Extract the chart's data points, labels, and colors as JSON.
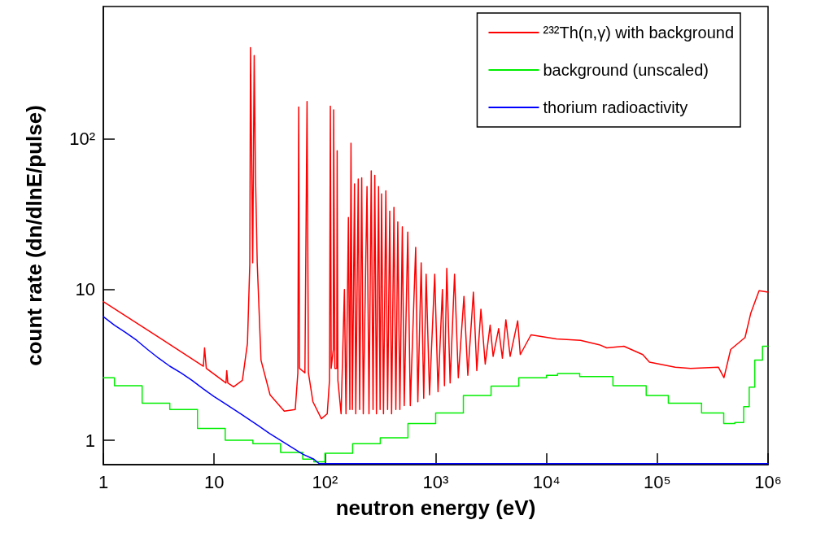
{
  "chart_data": {
    "type": "line",
    "xlabel": "neutron energy (eV)",
    "ylabel": "count rate (dn/dlnE/pulse)",
    "log": "xy",
    "xlim": [
      1,
      1000000
    ],
    "ylim": [
      0.69,
      750
    ],
    "xticks": [
      1,
      10,
      {
        "value": 100,
        "label": "10²"
      },
      {
        "value": 1000,
        "label": "10³"
      },
      {
        "value": 10000,
        "label": "10⁴"
      },
      {
        "value": 100000,
        "label": "10⁵"
      },
      {
        "value": 1000000,
        "label": "10⁶"
      }
    ],
    "yticks": [
      1,
      10,
      {
        "value": 100,
        "label": "10²"
      }
    ],
    "grid": false,
    "legend": "top right",
    "marker": "none",
    "line_style": "solid",
    "series": [
      {
        "name": "²³²Th(n,γ) with background",
        "color": "#ff0000",
        "type": "line",
        "x": [
          1,
          3.2,
          8,
          8.2,
          8.5,
          12.8,
          13,
          13.3,
          15,
          18,
          20,
          21,
          21.3,
          22.3,
          23,
          23.6,
          24.5,
          26.5,
          32,
          43,
          54,
          57,
          58,
          59,
          66,
          69,
          71,
          78,
          93,
          105,
          110,
          112,
          114,
          119,
          120,
          123,
          128,
          129,
          131,
          140,
          150,
          155,
          163,
          168,
          172,
          177,
          185,
          190,
          200,
          206,
          215,
          222,
          240,
          250,
          262,
          272,
          282,
          292,
          305,
          315,
          325,
          338,
          355,
          368,
          385,
          400,
          420,
          437,
          455,
          475,
          500,
          520,
          560,
          590,
          660,
          690,
          740,
          780,
          820,
          880,
          980,
          1050,
          1150,
          1200,
          1260,
          1350,
          1480,
          1600,
          1800,
          1950,
          2190,
          2350,
          2560,
          2800,
          3100,
          3300,
          3700,
          4000,
          4300,
          4700,
          5500,
          5800,
          7250,
          12300,
          20300,
          30000,
          35000,
          50000,
          74000,
          85000,
          145000,
          200000,
          357000,
          400000,
          460000,
          620000,
          700000,
          830000,
          1000000
        ],
        "values": [
          8.3,
          4.8,
          3.1,
          4.1,
          3.0,
          2.4,
          2.9,
          2.4,
          2.26,
          2.5,
          4.4,
          14.8,
          400,
          15,
          355,
          60,
          15,
          3.4,
          2.0,
          1.56,
          1.6,
          2.8,
          162,
          3.0,
          2.8,
          176,
          2.8,
          1.8,
          1.39,
          1.5,
          2.5,
          164,
          3,
          4,
          155,
          3,
          3,
          83,
          2.5,
          1.5,
          10,
          1.5,
          30,
          1.6,
          93,
          1.6,
          50,
          1.5,
          54,
          1.6,
          55,
          1.5,
          48,
          1.5,
          61,
          1.6,
          57,
          1.5,
          48,
          1.6,
          43,
          1.5,
          45,
          1.6,
          33,
          1.5,
          35,
          1.6,
          28,
          1.6,
          26,
          1.7,
          24,
          1.7,
          19,
          1.8,
          15,
          1.9,
          12.6,
          2.0,
          12.6,
          2.1,
          10,
          2.3,
          13.8,
          2.4,
          12.6,
          2.6,
          9,
          2.7,
          9.6,
          2.9,
          7.4,
          3.2,
          5.8,
          3.6,
          5.5,
          3.5,
          6.3,
          3.6,
          6.2,
          3.7,
          5.0,
          4.7,
          4.6,
          4.3,
          4.1,
          4.2,
          3.7,
          3.3,
          3.05,
          3.0,
          3.05,
          2.6,
          4.0,
          4.8,
          7.0,
          9.8,
          9.6
        ]
      },
      {
        "name": "background (unscaled)",
        "color": "#00ee00",
        "type": "step",
        "x": [
          1,
          1.26,
          2.24,
          3.98,
          7.08,
          12.6,
          22.4,
          39.8,
          63.1,
          79.4,
          100,
          178,
          316,
          562,
          1000,
          1778,
          3162,
          5623,
          10000,
          12589,
          19953,
          39811,
          79433,
          125893,
          251189,
          398107,
          501187,
          602560,
          676083,
          758578,
          891251,
          1000000
        ],
        "values": [
          2.6,
          2.3,
          1.76,
          1.6,
          1.2,
          1.0,
          0.95,
          0.83,
          0.75,
          0.72,
          0.82,
          0.95,
          1.04,
          1.29,
          1.52,
          1.98,
          2.29,
          2.6,
          2.7,
          2.77,
          2.65,
          2.3,
          1.98,
          1.76,
          1.52,
          1.29,
          1.31,
          1.67,
          2.25,
          3.4,
          4.2,
          4.2
        ]
      },
      {
        "name": "thorium radioactivity",
        "color": "#0000ff",
        "type": "line",
        "x": [
          1,
          1.26,
          1.58,
          2,
          2.51,
          3.16,
          3.98,
          5.01,
          6.31,
          7.94,
          10,
          12.6,
          15.8,
          20,
          25.1,
          31.6,
          39.8,
          50.1,
          63.1,
          79.4,
          89,
          1000000
        ],
        "values": [
          6.6,
          5.8,
          5.2,
          4.6,
          4.0,
          3.5,
          3.1,
          2.8,
          2.5,
          2.2,
          1.95,
          1.75,
          1.57,
          1.4,
          1.25,
          1.11,
          1.0,
          0.9,
          0.81,
          0.75,
          0.7,
          0.7
        ]
      }
    ]
  }
}
